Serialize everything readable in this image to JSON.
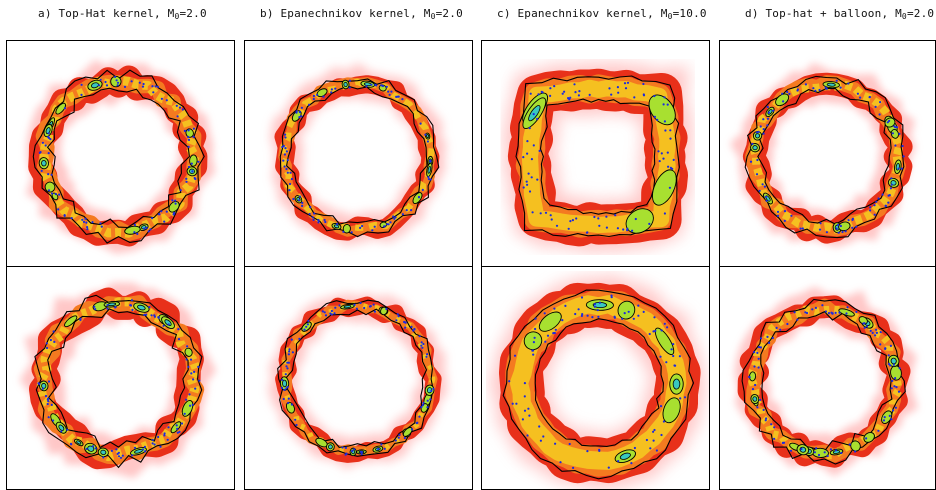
{
  "columns": [
    {
      "prefix": "a) Top-Hat kernel, M",
      "sub": "0",
      "suffix": "=2.0"
    },
    {
      "prefix": "b) Epanechnikov kernel, M",
      "sub": "0",
      "suffix": "=2.0"
    },
    {
      "prefix": "c) Epanechnikov kernel, M",
      "sub": "0",
      "suffix": "=10.0"
    },
    {
      "prefix": "d) Top-hat + balloon, M",
      "sub": "0",
      "suffix": "=2.0"
    }
  ],
  "colors": {
    "halo": "#ff9a9a",
    "outer": "#e8301a",
    "mid": "#f47a20",
    "inner": "#f5c020",
    "core": "#a8e030",
    "peak": "#38c8c0",
    "points": "#1a2ae0",
    "contour": "#000000"
  }
}
